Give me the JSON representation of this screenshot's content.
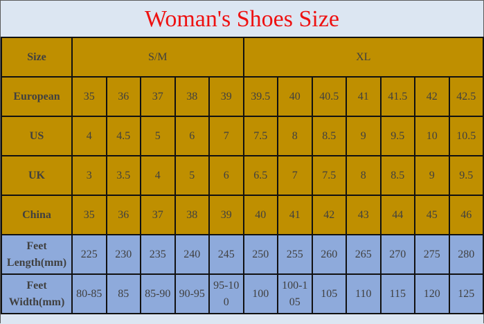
{
  "title": "Woman's Shoes Size",
  "colors": {
    "title": "#ee1111",
    "gold_rows": "#bf8f00",
    "blue_rows": "#8eaadb",
    "background": "#dce6f2"
  },
  "header": {
    "label": "Size",
    "groups": [
      "S/M",
      "XL"
    ]
  },
  "rows": [
    {
      "label": "European",
      "values": [
        "35",
        "36",
        "37",
        "38",
        "39",
        "39.5",
        "40",
        "40.5",
        "41",
        "41.5",
        "42",
        "42.5"
      ]
    },
    {
      "label": "US",
      "values": [
        "4",
        "4.5",
        "5",
        "6",
        "7",
        "7.5",
        "8",
        "8.5",
        "9",
        "9.5",
        "10",
        "10.5"
      ]
    },
    {
      "label": "UK",
      "values": [
        "3",
        "3.5",
        "4",
        "5",
        "6",
        "6.5",
        "7",
        "7.5",
        "8",
        "8.5",
        "9",
        "9.5"
      ]
    },
    {
      "label": "China",
      "values": [
        "35",
        "36",
        "37",
        "38",
        "39",
        "40",
        "41",
        "42",
        "43",
        "44",
        "45",
        "46"
      ]
    },
    {
      "label_line1": "Feet",
      "label_line2": "Length(mm)",
      "values": [
        "225",
        "230",
        "235",
        "240",
        "245",
        "250",
        "255",
        "260",
        "265",
        "270",
        "275",
        "280"
      ]
    },
    {
      "label_line1": "Feet",
      "label_line2": "Width(mm)",
      "values": [
        "80-85",
        "85",
        "85-90",
        "90-95",
        "95-10 0",
        "100",
        "100-1 05",
        "105",
        "110",
        "115",
        "120",
        "125"
      ]
    }
  ]
}
